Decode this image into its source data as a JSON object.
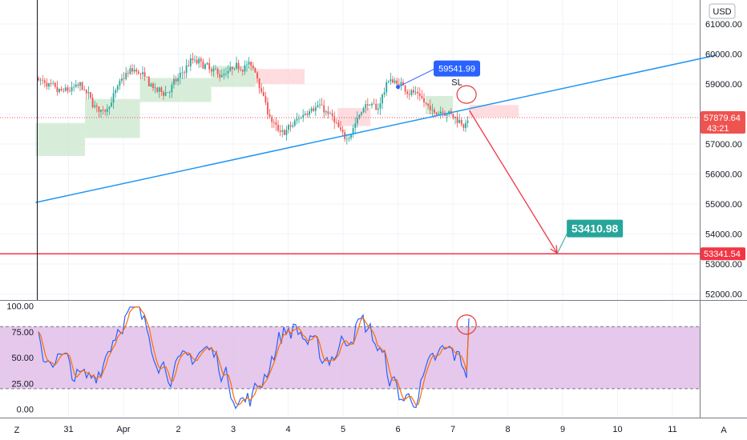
{
  "price_panel": {
    "currency_badge": "USD",
    "y_ticks": [
      52000,
      53000,
      54000,
      55000,
      56000,
      57000,
      58000,
      59000,
      60000,
      61000
    ],
    "y_tick_labels": [
      "52000.00",
      "53000.00",
      "54000.00",
      "55000.00",
      "56000.00",
      "57000.00",
      "58000.00",
      "59000.00",
      "60000.00",
      "61000.00"
    ],
    "ylim": [
      51800,
      61800
    ],
    "current_price": {
      "value": 57879.64,
      "label": "57879.64",
      "countdown": "43:21",
      "color": "#ef5350"
    },
    "target_level": {
      "value": 53341.54,
      "label": "53341.54",
      "color": "#f23645"
    },
    "sl_callout": {
      "value": 59541.99,
      "label": "59541.99",
      "text": "SL",
      "color": "#2962ff"
    },
    "target_callout": {
      "value": 53410.98,
      "label": "53410.98",
      "color": "#26a69a"
    },
    "trendline": {
      "color": "#2196f3",
      "start": {
        "day": -1.6,
        "price": 55050
      },
      "end": {
        "day": 10.8,
        "price": 59960
      }
    },
    "arrow": {
      "color": "#f23645",
      "from": {
        "day": 6.3,
        "price": 58120
      },
      "to": {
        "day": 7.9,
        "price": 53360
      }
    },
    "up_color": "#26a69a",
    "down_color": "#ef5350"
  },
  "stoch_panel": {
    "y_tick_labels": [
      "100.00",
      "75.00",
      "50.00",
      "25.00",
      "0.00"
    ],
    "y_ticks": [
      100,
      75,
      50,
      25,
      0
    ],
    "ylim": [
      -8,
      105
    ],
    "band": {
      "upper": 80,
      "lower": 20,
      "fill": "#e1bee7"
    },
    "k_color": "#2962ff",
    "d_color": "#ff6d00"
  },
  "x_axis": {
    "labels": [
      "31",
      "Apr",
      "2",
      "3",
      "4",
      "5",
      "6",
      "7",
      "8",
      "9",
      "10",
      "11"
    ],
    "days": [
      -1,
      0,
      1,
      2,
      3,
      4,
      5,
      6,
      7,
      8,
      9,
      10
    ]
  },
  "corner_left": "Z",
  "corner_right": "A",
  "chart_data": {
    "type": "line",
    "title": "",
    "xlabel": "",
    "ylabel": "",
    "series": [
      {
        "name": "",
        "x": [
          -1.6,
          -1.4,
          -1.2,
          -1.0,
          -0.8,
          -0.6,
          -0.4,
          -0.2,
          0.0,
          0.2,
          0.4,
          0.6,
          0.8,
          1.0,
          1.2,
          1.4,
          1.6,
          1.8,
          2.0,
          2.2,
          2.4,
          2.6,
          2.8,
          3.0,
          3.2,
          3.4,
          3.6,
          3.8,
          4.0,
          4.2,
          4.4,
          4.6,
          4.8,
          5.0,
          5.2,
          5.4,
          5.6,
          5.8,
          6.0,
          6.2,
          6.3
        ],
        "values": [
          59200,
          58900,
          58700,
          58800,
          58950,
          58400,
          58000,
          58600,
          59300,
          59500,
          59100,
          58700,
          58800,
          59200,
          59800,
          59700,
          59400,
          59300,
          59500,
          59700,
          59400,
          58100,
          57300,
          57500,
          57900,
          58300,
          58200,
          57800,
          57100,
          57700,
          58400,
          58100,
          59200,
          59000,
          58800,
          58500,
          58000,
          58200,
          57900,
          57700,
          57880
        ]
      }
    ],
    "ylim": [
      51800,
      61800
    ]
  }
}
